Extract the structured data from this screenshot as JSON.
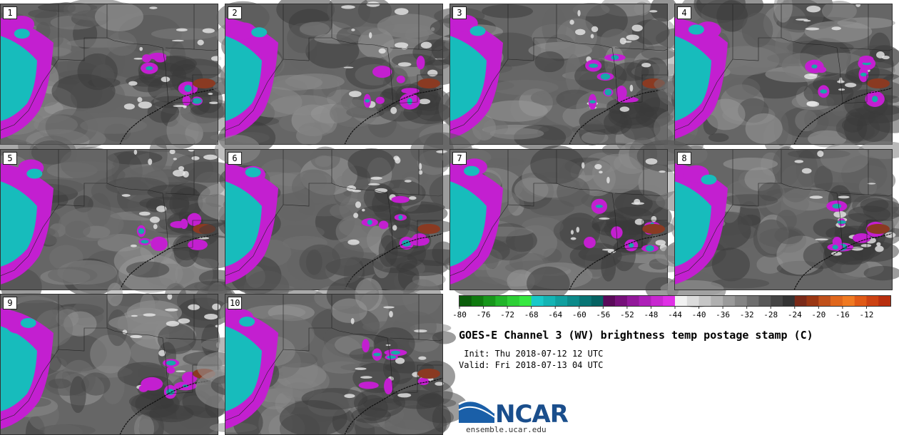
{
  "panels": [
    {
      "number": "1"
    },
    {
      "number": "2"
    },
    {
      "number": "3"
    },
    {
      "number": "4"
    },
    {
      "number": "5"
    },
    {
      "number": "6"
    },
    {
      "number": "7"
    },
    {
      "number": "8"
    },
    {
      "number": "9"
    },
    {
      "number": "10"
    }
  ],
  "colorbar": {
    "tick_labels": [
      "-80",
      "-76",
      "-72",
      "-68",
      "-64",
      "-60",
      "-56",
      "-52",
      "-48",
      "-44",
      "-40",
      "-36",
      "-32",
      "-28",
      "-24",
      "-20",
      "-16",
      "-12"
    ],
    "colors": [
      "#0b5d0b",
      "#0f7a0f",
      "#17961b",
      "#22b42a",
      "#2dcf35",
      "#36e840",
      "#18c9c9",
      "#14b4b4",
      "#109f9f",
      "#0c8a8a",
      "#087575",
      "#056262",
      "#5a0a5a",
      "#76107a",
      "#92189a",
      "#ae20b8",
      "#c828d0",
      "#e030e6",
      "#f2f2f2",
      "#dcdcdc",
      "#c6c6c6",
      "#b0b0b0",
      "#9a9a9a",
      "#848484",
      "#6e6e6e",
      "#585858",
      "#444444",
      "#333333",
      "#7a2a18",
      "#9a3612",
      "#c0501a",
      "#e0671c",
      "#f07a22",
      "#e05a16",
      "#cc4212",
      "#b82e0e"
    ]
  },
  "title": "GOES-E Channel 3 (WV) brightness temp postage stamp (C)",
  "init": " Init: Thu 2018-07-12 12 UTC",
  "valid": "Valid: Fri 2018-07-13 04 UTC",
  "logo": {
    "text": "NCAR",
    "url": "ensemble.ucar.edu"
  }
}
